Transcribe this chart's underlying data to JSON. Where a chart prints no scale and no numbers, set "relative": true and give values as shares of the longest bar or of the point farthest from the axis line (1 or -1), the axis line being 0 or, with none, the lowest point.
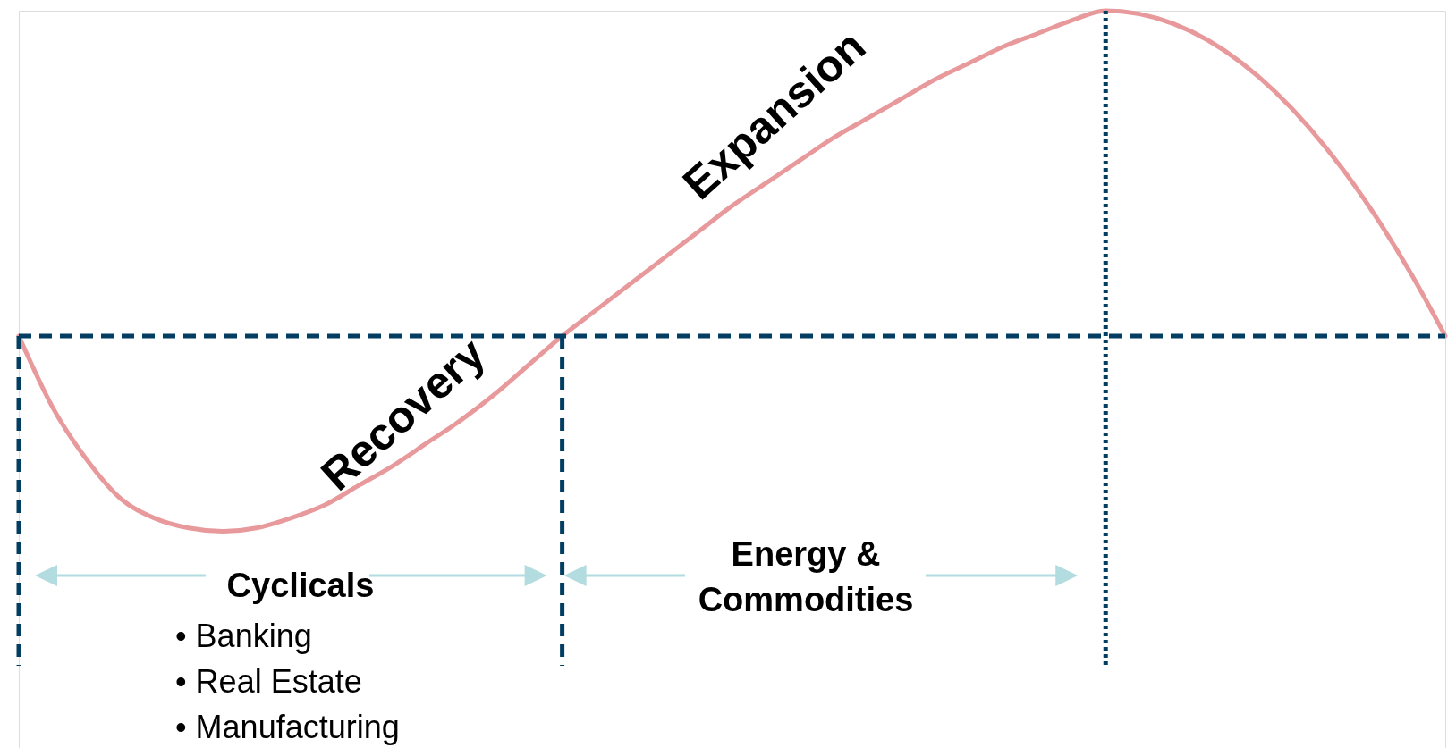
{
  "chart_data": {
    "type": "line",
    "relative": true,
    "categories": [
      null,
      null,
      null,
      null,
      null,
      null,
      null,
      null,
      null,
      null,
      null,
      null,
      null,
      null,
      null,
      null,
      null,
      null,
      null,
      null,
      null,
      null,
      null,
      null,
      null,
      null,
      null,
      null,
      null,
      null,
      null,
      null,
      null,
      null,
      null,
      null,
      null,
      null,
      null,
      null,
      null,
      null,
      null
    ],
    "series": [
      {
        "color": "#e8999b",
        "values": [
          0,
          -0.22,
          -0.38,
          -0.5,
          -0.56,
          -0.59,
          -0.6,
          -0.59,
          -0.56,
          -0.52,
          -0.46,
          -0.4,
          -0.33,
          -0.26,
          -0.18,
          -0.09,
          0,
          0.08,
          0.16,
          0.24,
          0.32,
          0.4,
          0.47,
          0.54,
          0.61,
          0.67,
          0.73,
          0.79,
          0.84,
          0.89,
          0.93,
          0.97,
          1,
          0.99,
          0.96,
          0.91,
          0.84,
          0.75,
          0.64,
          0.51,
          0.36,
          0.19,
          0
        ]
      }
    ],
    "ref_lines": [
      {
        "axis": "y",
        "value": 0,
        "line_style": "dashed",
        "color": "#023e62"
      }
    ],
    "annotations": [
      "Recovery",
      "Expansion",
      "Cyclicals",
      "• Banking",
      "• Real Estate",
      "• Manufacturing",
      "Energy &\nCommodities"
    ]
  }
}
